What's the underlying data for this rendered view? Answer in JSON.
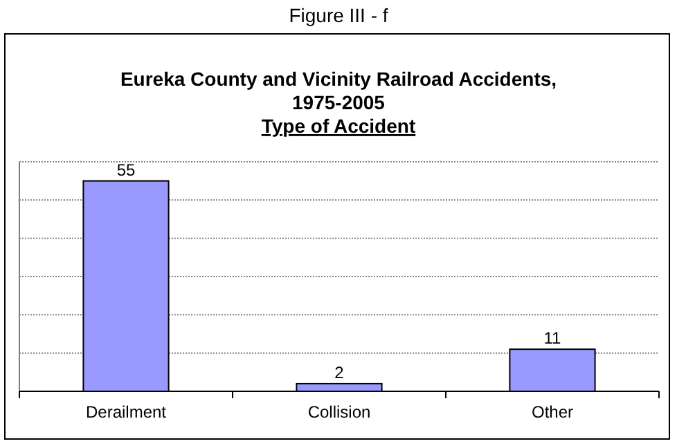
{
  "chart_data": {
    "type": "bar",
    "title": "Eureka County and Vicinity Railroad Accidents, 1975-2005",
    "subtitle": "Type of Accident",
    "annotations": [
      "Figure III - f"
    ],
    "categories": [
      "Derailment",
      "Collision",
      "Other"
    ],
    "values": [
      55,
      2,
      11
    ],
    "color": "#9999ff",
    "data_labels": true,
    "ylim": [
      0,
      60
    ],
    "yticks": [
      {
        "value": 0,
        "label": null
      },
      {
        "value": 10,
        "label": null
      },
      {
        "value": 20,
        "label": null
      },
      {
        "value": 30,
        "label": null
      },
      {
        "value": 40,
        "label": null
      },
      {
        "value": 50,
        "label": null
      },
      {
        "value": 60,
        "label": null
      }
    ],
    "grid": "y",
    "tick_labels": "x"
  }
}
